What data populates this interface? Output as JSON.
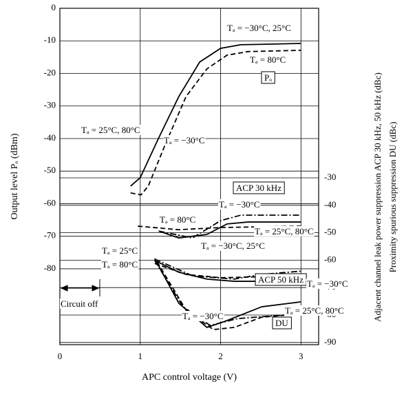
{
  "chart_data": {
    "type": "line",
    "xlabel": "APC control voltage  (V)",
    "ylabel": "Output level  Pₒ  (dBm)",
    "y2label": [
      "Adjacent channel leak power suppression  ACP 30 kHz, 50 kHz  (dBc)",
      "Proximity spurious suppression  DU  (dBc)"
    ],
    "xlim": [
      0,
      3.22
    ],
    "xticks": [
      0,
      1,
      2,
      3
    ],
    "ylim": [
      -103.3,
      0
    ],
    "yticks": [
      0,
      -10,
      -20,
      -30,
      -40,
      -50,
      -60,
      -70,
      -80
    ],
    "y2lim": [
      -90.8,
      31.8
    ],
    "y2ticks": [
      -30,
      -40,
      -50,
      -60,
      -70,
      -80,
      -90
    ],
    "grid": true,
    "series": [
      {
        "color": "#000000",
        "dash": "solid",
        "x": [
          0.88,
          1.0,
          1.23,
          1.48,
          1.74,
          2.0,
          2.25,
          3.0
        ],
        "values": [
          -54.6,
          -52,
          -39.8,
          -27.1,
          -16.5,
          -12.3,
          -11.2,
          -10.8
        ]
      },
      {
        "color": "#000000",
        "dash": "dashed",
        "x": [
          0.88,
          1.01,
          1.1,
          1.31,
          1.57,
          1.83,
          2.08,
          2.34,
          3.0
        ],
        "values": [
          -56.7,
          -57.3,
          -54.6,
          -41.9,
          -27.1,
          -18.6,
          -14.4,
          -13.3,
          -12.9
        ]
      },
      {
        "color": "#000000",
        "dash": "dashed",
        "axis": "y2",
        "x": [
          0.97,
          1.48,
          2.0,
          3.0
        ],
        "values": [
          -47.6,
          -48.9,
          -48.1,
          -47.6
        ]
      },
      {
        "color": "#000000",
        "dash": "dashdot",
        "axis": "y2",
        "x": [
          1.23,
          1.65,
          2.0,
          2.25,
          3.0
        ],
        "values": [
          -49.4,
          -51.9,
          -45.6,
          -43.6,
          -43.6
        ]
      },
      {
        "color": "#000000",
        "dash": "solid",
        "axis": "y2",
        "x": [
          1.23,
          1.48,
          1.83,
          2.08,
          2.34,
          3.0
        ],
        "values": [
          -49.4,
          -51.9,
          -50.6,
          -46.8,
          -46.1,
          -46.1
        ]
      },
      {
        "color": "#000000",
        "dash": "solid",
        "axis": "y2",
        "x": [
          1.18,
          1.48,
          1.83,
          2.17,
          3.0
        ],
        "values": [
          -60.1,
          -64.4,
          -66.9,
          -67.7,
          -67.7
        ]
      },
      {
        "color": "#000000",
        "dash": "dashed",
        "axis": "y2",
        "x": [
          1.18,
          1.57,
          2.0,
          3.0
        ],
        "values": [
          -61.2,
          -65.2,
          -66.4,
          -65.7
        ]
      },
      {
        "color": "#000000",
        "dash": "dashdot",
        "axis": "y2",
        "x": [
          1.18,
          1.65,
          2.17,
          2.51,
          3.0
        ],
        "values": [
          -59.6,
          -65.7,
          -66.9,
          -65.2,
          -64.0
        ]
      },
      {
        "color": "#000000",
        "dash": "solid",
        "axis": "y2",
        "x": [
          1.18,
          1.48,
          1.83,
          2.08,
          2.51,
          3.0
        ],
        "values": [
          -59.4,
          -75.7,
          -84.5,
          -82.0,
          -77.0,
          -75.2
        ]
      },
      {
        "color": "#000000",
        "dash": "dashed",
        "axis": "y2",
        "x": [
          1.21,
          1.57,
          1.91,
          2.17,
          2.51,
          3.0
        ],
        "values": [
          -60.6,
          -78.2,
          -85.3,
          -84.5,
          -80.8,
          -79.5
        ]
      },
      {
        "color": "#000000",
        "dash": "dashdot",
        "axis": "y2",
        "x": [
          1.18,
          1.53,
          1.87,
          2.21,
          3.0
        ],
        "values": [
          -60.1,
          -76.9,
          -83.8,
          -81.3,
          -79.5
        ]
      }
    ],
    "annotations": [
      "Tₐ = −30°C, 25°C",
      "Tₐ = 80°C",
      "Pₒ",
      "Tₐ = 25°C, 80°C",
      "Tₐ = −30°C",
      "ACP 30 kHz",
      "Tₐ = −30°C",
      "Tₐ = 80°C",
      "Tₐ = 25°C, 80°C",
      "Tₐ = −30°C, 25°C",
      "Tₐ = 25°C",
      "Tₐ = 80°C",
      "ACP 50 kHz",
      "Tₐ = −30°C",
      "Tₐ = 25°C, 80°C",
      "Tₐ = −30°C",
      "DU",
      "Circuit off"
    ]
  }
}
